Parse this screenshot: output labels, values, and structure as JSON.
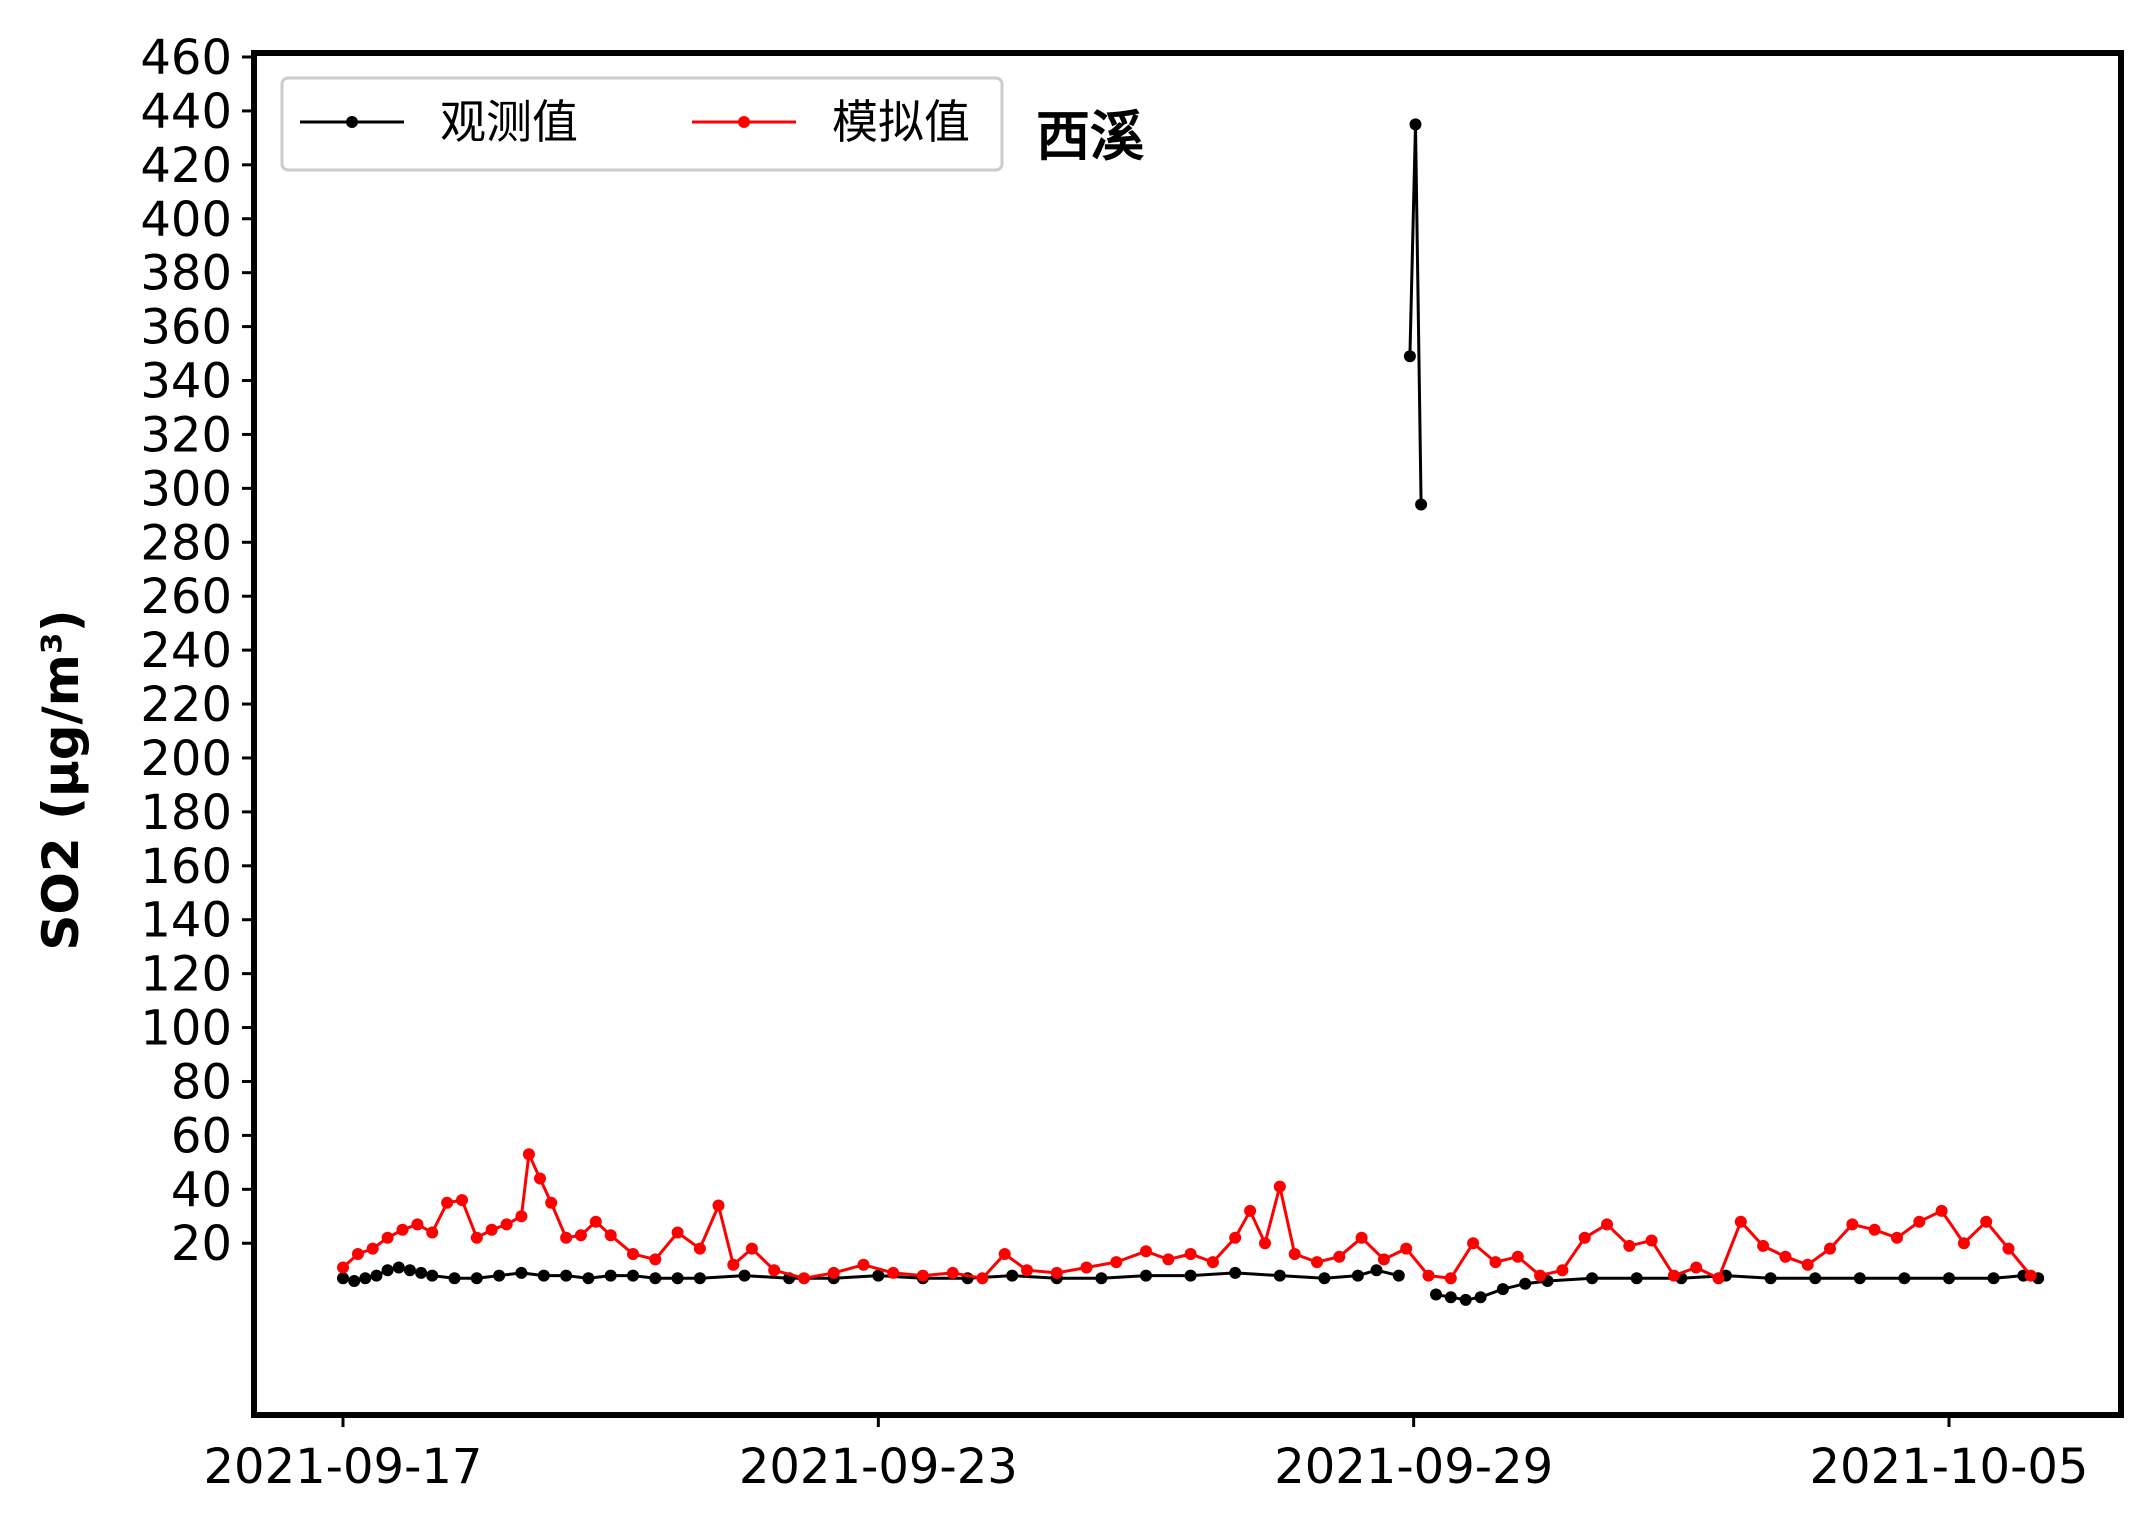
{
  "chart_data": {
    "type": "line",
    "title": "",
    "annotation": "西溪",
    "ylabel_text": "SO2",
    "ylabel_unit": "(μg/m³)",
    "xlabel": "",
    "x_ticks": [
      "2021-09-17",
      "2021-09-23",
      "2021-09-29",
      "2021-10-05"
    ],
    "x_range": [
      "2021-09-16T00:00",
      "2021-10-06T00:00"
    ],
    "y_ticks": [
      20,
      40,
      60,
      80,
      100,
      120,
      140,
      160,
      180,
      200,
      220,
      240,
      260,
      280,
      300,
      320,
      340,
      360,
      380,
      400,
      420,
      440,
      460
    ],
    "ylim": [
      -40,
      460
    ],
    "grid": false,
    "legend_position": "top-left",
    "series": [
      {
        "name": "观测值",
        "color": "#000000",
        "points": [
          [
            "2021-09-17T00:00",
            7
          ],
          [
            "2021-09-17T03:00",
            6
          ],
          [
            "2021-09-17T06:00",
            7
          ],
          [
            "2021-09-17T09:00",
            8
          ],
          [
            "2021-09-17T12:00",
            10
          ],
          [
            "2021-09-17T15:00",
            11
          ],
          [
            "2021-09-17T18:00",
            10
          ],
          [
            "2021-09-17T21:00",
            9
          ],
          [
            "2021-09-18T00:00",
            8
          ],
          [
            "2021-09-18T06:00",
            7
          ],
          [
            "2021-09-18T12:00",
            7
          ],
          [
            "2021-09-18T18:00",
            8
          ],
          [
            "2021-09-19T00:00",
            9
          ],
          [
            "2021-09-19T06:00",
            8
          ],
          [
            "2021-09-19T12:00",
            8
          ],
          [
            "2021-09-19T18:00",
            7
          ],
          [
            "2021-09-20T00:00",
            8
          ],
          [
            "2021-09-20T06:00",
            8
          ],
          [
            "2021-09-20T12:00",
            7
          ],
          [
            "2021-09-20T18:00",
            7
          ],
          [
            "2021-09-21T00:00",
            7
          ],
          [
            "2021-09-21T12:00",
            8
          ],
          [
            "2021-09-22T00:00",
            7
          ],
          [
            "2021-09-22T12:00",
            7
          ],
          [
            "2021-09-23T00:00",
            8
          ],
          [
            "2021-09-23T12:00",
            7
          ],
          [
            "2021-09-24T00:00",
            7
          ],
          [
            "2021-09-24T12:00",
            8
          ],
          [
            "2021-09-25T00:00",
            7
          ],
          [
            "2021-09-25T12:00",
            7
          ],
          [
            "2021-09-26T00:00",
            8
          ],
          [
            "2021-09-26T12:00",
            8
          ],
          [
            "2021-09-27T00:00",
            9
          ],
          [
            "2021-09-27T12:00",
            8
          ],
          [
            "2021-09-28T00:00",
            7
          ],
          [
            "2021-09-28T09:00",
            8
          ],
          [
            "2021-09-28T14:00",
            10
          ],
          [
            "2021-09-28T20:00",
            8
          ],
          null,
          [
            "2021-09-28T23:00",
            349
          ],
          [
            "2021-09-29T00:30",
            435
          ],
          [
            "2021-09-29T02:00",
            294
          ],
          null,
          [
            "2021-09-29T06:00",
            1
          ],
          [
            "2021-09-29T10:00",
            0
          ],
          [
            "2021-09-29T14:00",
            -1
          ],
          [
            "2021-09-29T18:00",
            0
          ],
          [
            "2021-09-30T00:00",
            3
          ],
          [
            "2021-09-30T06:00",
            5
          ],
          [
            "2021-09-30T12:00",
            6
          ],
          [
            "2021-10-01T00:00",
            7
          ],
          [
            "2021-10-01T12:00",
            7
          ],
          [
            "2021-10-02T00:00",
            7
          ],
          [
            "2021-10-02T12:00",
            8
          ],
          [
            "2021-10-03T00:00",
            7
          ],
          [
            "2021-10-03T12:00",
            7
          ],
          [
            "2021-10-04T00:00",
            7
          ],
          [
            "2021-10-04T12:00",
            7
          ],
          [
            "2021-10-05T00:00",
            7
          ],
          [
            "2021-10-05T12:00",
            7
          ],
          [
            "2021-10-05T20:00",
            8
          ],
          [
            "2021-10-06T00:00",
            7
          ]
        ]
      },
      {
        "name": "模拟值",
        "color": "#ff0000",
        "points": [
          [
            "2021-09-17T00:00",
            11
          ],
          [
            "2021-09-17T04:00",
            16
          ],
          [
            "2021-09-17T08:00",
            18
          ],
          [
            "2021-09-17T12:00",
            22
          ],
          [
            "2021-09-17T16:00",
            25
          ],
          [
            "2021-09-17T20:00",
            27
          ],
          [
            "2021-09-18T00:00",
            24
          ],
          [
            "2021-09-18T04:00",
            35
          ],
          [
            "2021-09-18T08:00",
            36
          ],
          [
            "2021-09-18T12:00",
            22
          ],
          [
            "2021-09-18T16:00",
            25
          ],
          [
            "2021-09-18T20:00",
            27
          ],
          [
            "2021-09-19T00:00",
            30
          ],
          [
            "2021-09-19T02:00",
            53
          ],
          [
            "2021-09-19T05:00",
            44
          ],
          [
            "2021-09-19T08:00",
            35
          ],
          [
            "2021-09-19T12:00",
            22
          ],
          [
            "2021-09-19T16:00",
            23
          ],
          [
            "2021-09-19T20:00",
            28
          ],
          [
            "2021-09-20T00:00",
            23
          ],
          [
            "2021-09-20T06:00",
            16
          ],
          [
            "2021-09-20T12:00",
            14
          ],
          [
            "2021-09-20T18:00",
            24
          ],
          [
            "2021-09-21T00:00",
            18
          ],
          [
            "2021-09-21T05:00",
            34
          ],
          [
            "2021-09-21T09:00",
            12
          ],
          [
            "2021-09-21T14:00",
            18
          ],
          [
            "2021-09-21T20:00",
            10
          ],
          [
            "2021-09-22T04:00",
            7
          ],
          [
            "2021-09-22T12:00",
            9
          ],
          [
            "2021-09-22T20:00",
            12
          ],
          [
            "2021-09-23T04:00",
            9
          ],
          [
            "2021-09-23T12:00",
            8
          ],
          [
            "2021-09-23T20:00",
            9
          ],
          [
            "2021-09-24T04:00",
            7
          ],
          [
            "2021-09-24T10:00",
            16
          ],
          [
            "2021-09-24T16:00",
            10
          ],
          [
            "2021-09-25T00:00",
            9
          ],
          [
            "2021-09-25T08:00",
            11
          ],
          [
            "2021-09-25T16:00",
            13
          ],
          [
            "2021-09-26T00:00",
            17
          ],
          [
            "2021-09-26T06:00",
            14
          ],
          [
            "2021-09-26T12:00",
            16
          ],
          [
            "2021-09-26T18:00",
            13
          ],
          [
            "2021-09-27T00:00",
            22
          ],
          [
            "2021-09-27T04:00",
            32
          ],
          [
            "2021-09-27T08:00",
            20
          ],
          [
            "2021-09-27T12:00",
            41
          ],
          [
            "2021-09-27T16:00",
            16
          ],
          [
            "2021-09-27T22:00",
            13
          ],
          [
            "2021-09-28T04:00",
            15
          ],
          [
            "2021-09-28T10:00",
            22
          ],
          [
            "2021-09-28T16:00",
            14
          ],
          [
            "2021-09-28T22:00",
            18
          ],
          [
            "2021-09-29T04:00",
            8
          ],
          [
            "2021-09-29T10:00",
            7
          ],
          [
            "2021-09-29T16:00",
            20
          ],
          [
            "2021-09-29T22:00",
            13
          ],
          [
            "2021-09-30T04:00",
            15
          ],
          [
            "2021-09-30T10:00",
            8
          ],
          [
            "2021-09-30T16:00",
            10
          ],
          [
            "2021-09-30T22:00",
            22
          ],
          [
            "2021-10-01T04:00",
            27
          ],
          [
            "2021-10-01T10:00",
            19
          ],
          [
            "2021-10-01T16:00",
            21
          ],
          [
            "2021-10-01T22:00",
            8
          ],
          [
            "2021-10-02T04:00",
            11
          ],
          [
            "2021-10-02T10:00",
            7
          ],
          [
            "2021-10-02T16:00",
            28
          ],
          [
            "2021-10-02T22:00",
            19
          ],
          [
            "2021-10-03T04:00",
            15
          ],
          [
            "2021-10-03T10:00",
            12
          ],
          [
            "2021-10-03T16:00",
            18
          ],
          [
            "2021-10-03T22:00",
            27
          ],
          [
            "2021-10-04T04:00",
            25
          ],
          [
            "2021-10-04T10:00",
            22
          ],
          [
            "2021-10-04T16:00",
            28
          ],
          [
            "2021-10-04T22:00",
            32
          ],
          [
            "2021-10-05T04:00",
            20
          ],
          [
            "2021-10-05T10:00",
            28
          ],
          [
            "2021-10-05T16:00",
            18
          ],
          [
            "2021-10-05T22:00",
            8
          ]
        ]
      }
    ]
  }
}
